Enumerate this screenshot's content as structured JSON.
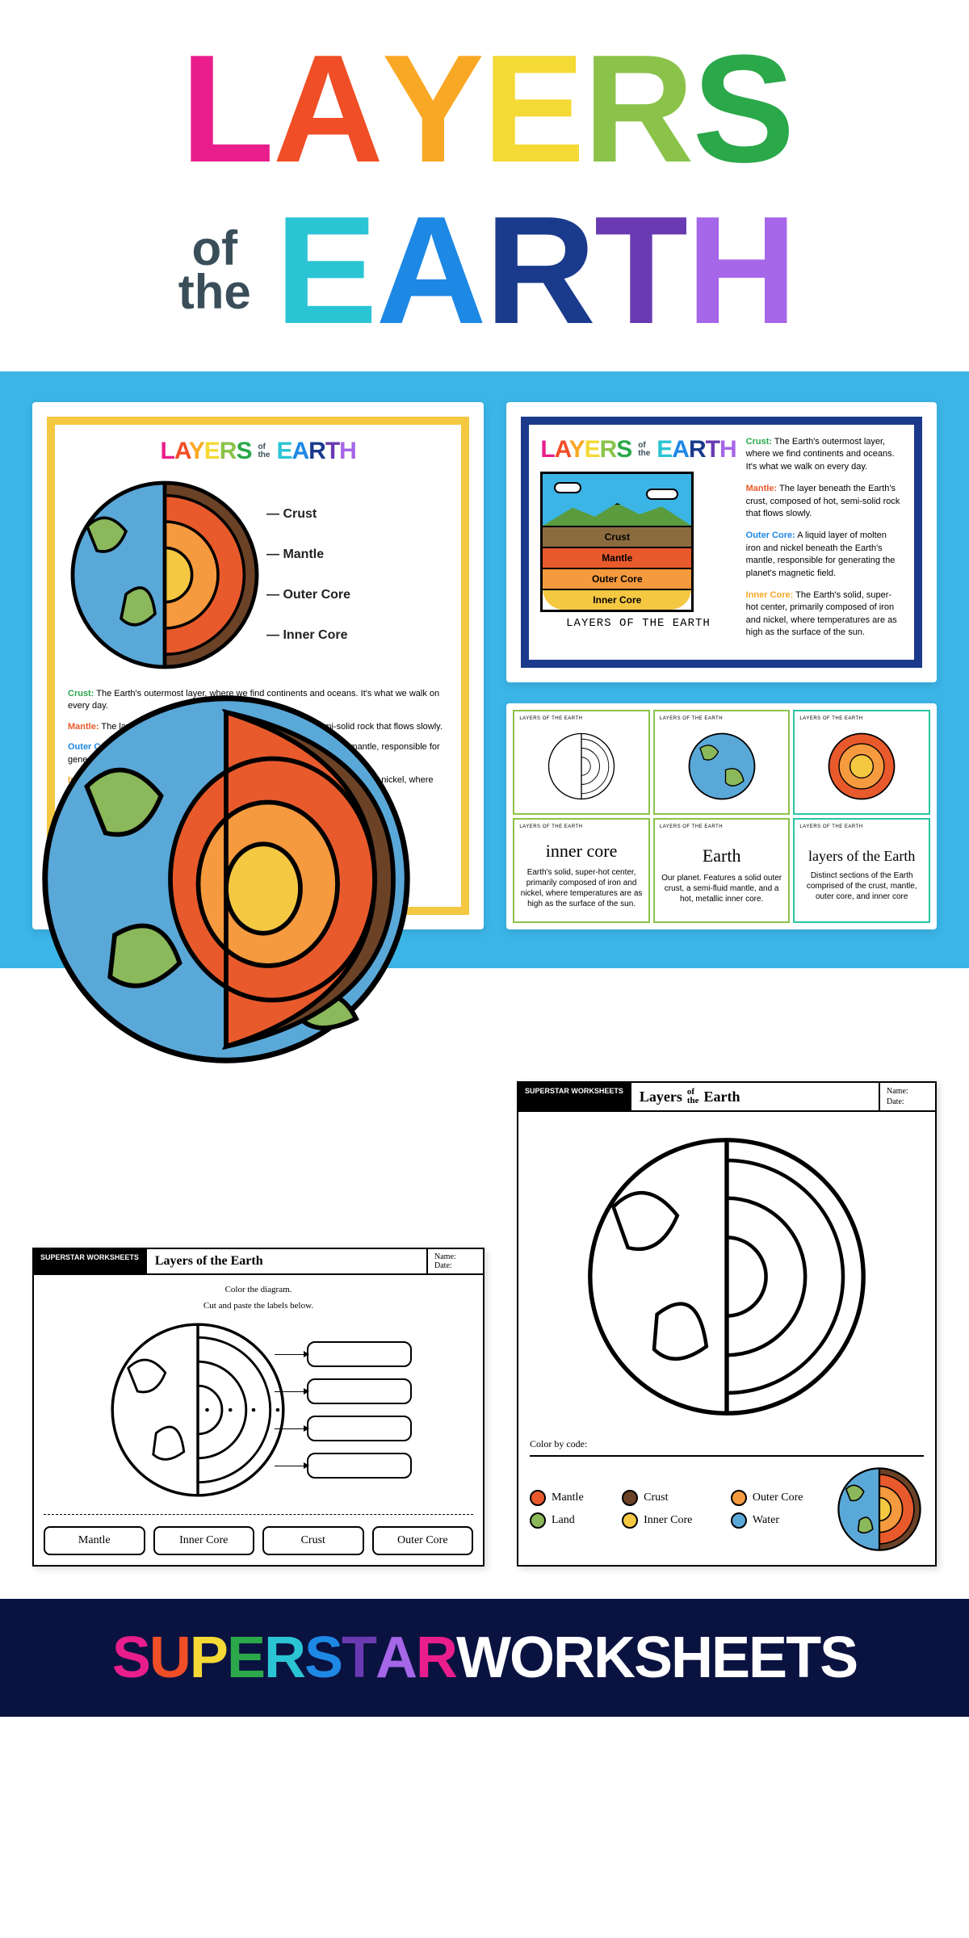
{
  "title": {
    "layers_letters": [
      "L",
      "A",
      "Y",
      "E",
      "R",
      "S"
    ],
    "layers_colors": [
      "#e91e8c",
      "#f04e26",
      "#f9a825",
      "#f5d935",
      "#8bc34a",
      "#2ba84a"
    ],
    "of": "of",
    "the": "the",
    "earth_letters": [
      "E",
      "A",
      "R",
      "T",
      "H"
    ],
    "earth_colors": [
      "#2bc4d4",
      "#1e88e5",
      "#1a3a8c",
      "#6a3ab2",
      "#a566e8"
    ]
  },
  "colors": {
    "blue_bg": "#3bb4e6",
    "crust": "#6b4226",
    "mantle": "#e85a2c",
    "outer_core": "#f59a3e",
    "inner_core": "#f5c842",
    "land": "#8bb85a",
    "water": "#5aa8d8",
    "footer_bg": "#0a1240"
  },
  "layers": [
    "Crust",
    "Mantle",
    "Outer Core",
    "Inner Core"
  ],
  "descriptions": {
    "crust": {
      "label": "Crust:",
      "color": "#2ba84a",
      "text": "The Earth's outermost layer, where we find continents and oceans. It's what we walk on every day."
    },
    "mantle": {
      "label": "Mantle:",
      "color": "#e85a2c",
      "text": "The layer beneath the Earth's crust, composed of hot, semi-solid rock that flows slowly."
    },
    "outer_core": {
      "label": "Outer Core:",
      "color": "#1e88e5",
      "text": "A liquid layer of molten iron and nickel beneath the Earth's mantle, responsible for generating the planet's magnetic field."
    },
    "inner_core": {
      "label": "Inner Core:",
      "color": "#f9a825",
      "text": "The Earth's solid, super-hot center, primarily composed of iron and nickel, where temperatures are as high as the surface of the sun."
    }
  },
  "cross_section_caption": "LAYERS OF THE EARTH",
  "cards": {
    "border_colors": [
      "#8bc34a",
      "#8bc34a",
      "#2bc4a4",
      "#8bc34a",
      "#8bc34a",
      "#2bc4a4"
    ],
    "header": "LAYERS OF THE EARTH",
    "text_cards": [
      {
        "label": "inner core",
        "desc": "Earth's solid, super-hot center, primarily composed of iron and nickel, where temperatures are as high as the surface of the sun."
      },
      {
        "label": "Earth",
        "desc": "Our planet. Features a solid outer crust, a semi-fluid mantle, and a hot, metallic inner core."
      },
      {
        "label": "layers of the Earth",
        "desc": "Distinct sections of the Earth comprised of the crust, mantle, outer core, and inner core"
      }
    ]
  },
  "ws1": {
    "logo": "SUPERSTAR WORKSHEETS",
    "title": "Layers of the Earth",
    "name": "Name:",
    "date": "Date:",
    "instr1": "Color the diagram.",
    "instr2": "Cut and paste the labels below.",
    "cuts": [
      "Mantle",
      "Inner Core",
      "Crust",
      "Outer Core"
    ]
  },
  "ws2": {
    "logo": "SUPERSTAR WORKSHEETS",
    "title": "Layers of the Earth",
    "name": "Name:",
    "date": "Date:",
    "color_by_code": "Color by code:",
    "legend": [
      {
        "label": "Mantle",
        "color": "#e85a2c"
      },
      {
        "label": "Crust",
        "color": "#6b4226"
      },
      {
        "label": "Outer Core",
        "color": "#f59a3e"
      },
      {
        "label": "Land",
        "color": "#8bb85a"
      },
      {
        "label": "Inner Core",
        "color": "#f5c842"
      },
      {
        "label": "Water",
        "color": "#5aa8d8"
      }
    ]
  },
  "footer": {
    "letters": [
      "S",
      "U",
      "P",
      "E",
      "R",
      "S",
      "T",
      "A",
      "R",
      "W",
      "O",
      "R",
      "K",
      "S",
      "H",
      "E",
      "E",
      "T",
      "S"
    ],
    "colors": [
      "#e91e8c",
      "#f04e26",
      "#f5d935",
      "#2ba84a",
      "#2bc4d4",
      "#1e88e5",
      "#6a3ab2",
      "#a566e8",
      "#e91e8c",
      "#ffffff",
      "#ffffff",
      "#ffffff",
      "#ffffff",
      "#ffffff",
      "#ffffff",
      "#ffffff",
      "#ffffff",
      "#ffffff",
      "#ffffff"
    ]
  }
}
